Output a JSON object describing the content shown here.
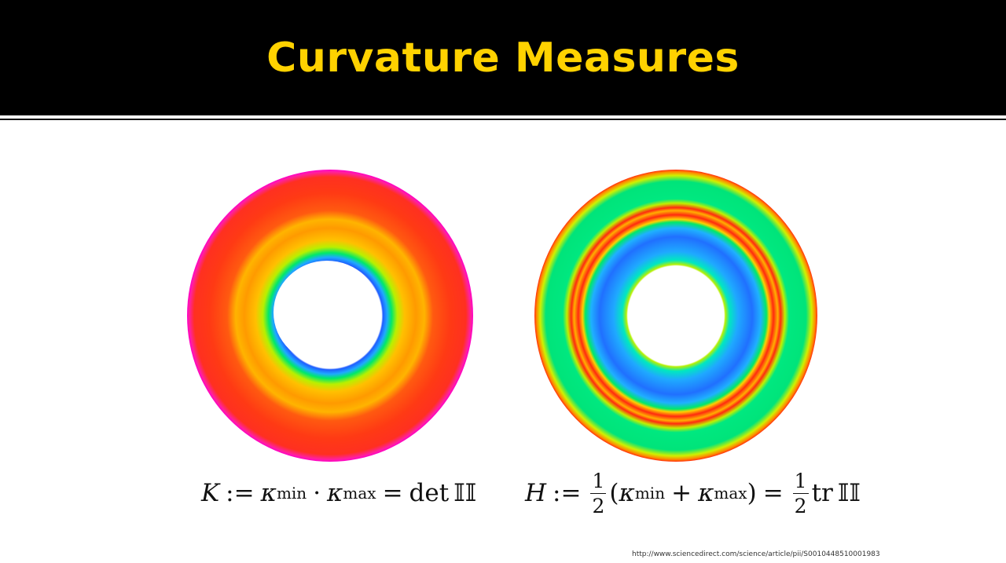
{
  "slide": {
    "title": "Curvature Measures",
    "source_url": "http://www.sciencedirect.com/science/article/pii/S0010448510001983"
  },
  "figures": [
    {
      "name": "gaussian-curvature-torus",
      "formula": {
        "lhs": "K",
        "assign": ":=",
        "kappa": "κ",
        "min": "min",
        "dot": "·",
        "max": "max",
        "eq": "=",
        "rhs_op": "det",
        "rhs_symbol": "𝕀𝕀"
      }
    },
    {
      "name": "mean-curvature-torus",
      "formula": {
        "lhs": "H",
        "assign": ":=",
        "frac_num": "1",
        "frac_den": "2",
        "lparen": "(",
        "kappa": "κ",
        "min": "min",
        "plus": "+",
        "max": "max",
        "rparen": ")",
        "eq": "=",
        "rhs_op": "tr",
        "rhs_symbol": "𝕀𝕀"
      }
    }
  ],
  "colors": {
    "header_bg": "#000000",
    "title": "#ffd200",
    "colormap": [
      "#1f5cff",
      "#1fa9ff",
      "#00e86a",
      "#b8f000",
      "#ffd000",
      "#ff8a00",
      "#ff2a10",
      "#ff00c8"
    ]
  }
}
